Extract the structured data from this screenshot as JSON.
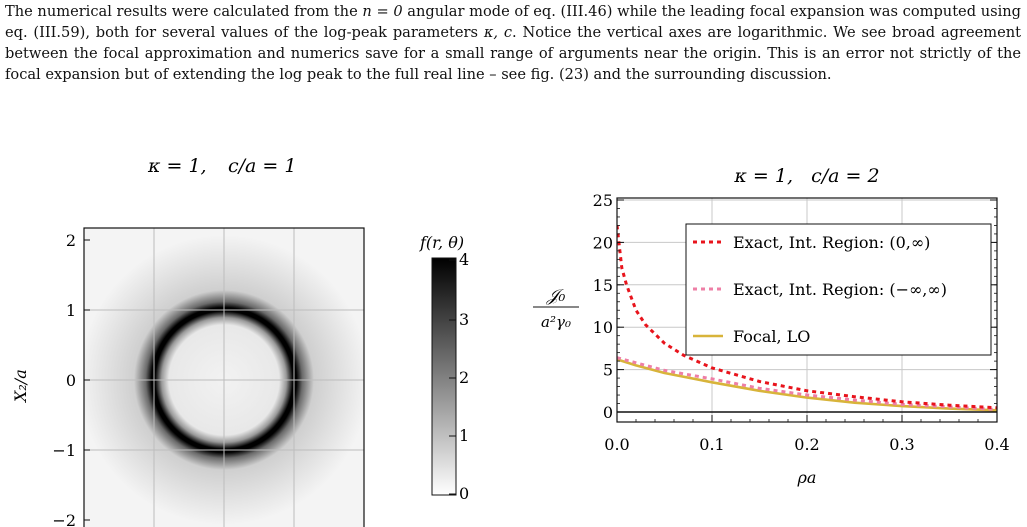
{
  "paragraph": {
    "part1": "The numerical results were calculated from the ",
    "n_eq": "n = 0",
    "part2": " angular mode of eq. (III.46) while the leading focal expansion was computed using eq. (III.59), both for several values of the log-peak parameters ",
    "params": "κ, c",
    "part3": ". Notice the vertical axes are logarithmic. We see broad agreement between the focal approximation and numerics save for a small range of arguments near the origin. This is an error not strictly of the focal expansion but of extending the log peak to the full real line – see fig. (23) and the surrounding discussion."
  },
  "left_panel": {
    "title_kappa": "κ = 1,",
    "title_c": "c/a = 1",
    "ylabel": "X₂/a",
    "yticks": [
      "2",
      "1",
      "0",
      "−1",
      "−2"
    ],
    "colorbar_title": "f(r, θ)",
    "colorbar_ticks": [
      "4",
      "3",
      "2",
      "1",
      "0"
    ]
  },
  "chart_data": {
    "type": "line",
    "title": "κ = 1,   c/a = 2",
    "xlabel": "ρa",
    "ylabel_num": "𝒥₀",
    "ylabel_den": "a²γ₀",
    "xlim": [
      0.0,
      0.4
    ],
    "ylim": [
      0,
      25
    ],
    "xticks": [
      "0.0",
      "0.1",
      "0.2",
      "0.3",
      "0.4"
    ],
    "yticks": [
      "0",
      "5",
      "10",
      "15",
      "20",
      "25"
    ],
    "grid": true,
    "legend_position": "top-right",
    "series": [
      {
        "name": "Exact, Int. Region: (0,∞)",
        "style": "dotted",
        "color": "#e8141c",
        "x": [
          0.0,
          0.005,
          0.01,
          0.02,
          0.03,
          0.05,
          0.07,
          0.1,
          0.15,
          0.2,
          0.25,
          0.3,
          0.35,
          0.4
        ],
        "y": [
          22.0,
          17.0,
          15.0,
          12.0,
          10.3,
          8.1,
          6.7,
          5.2,
          3.6,
          2.5,
          1.8,
          1.2,
          0.8,
          0.5
        ]
      },
      {
        "name": "Exact, Int. Region: (−∞,∞)",
        "style": "dotted",
        "color": "#ee7fa6",
        "x": [
          0.0,
          0.02,
          0.05,
          0.1,
          0.15,
          0.2,
          0.25,
          0.3,
          0.35,
          0.4
        ],
        "y": [
          6.4,
          5.8,
          4.9,
          3.9,
          2.8,
          2.0,
          1.4,
          0.9,
          0.6,
          0.3
        ]
      },
      {
        "name": "Focal, LO",
        "style": "solid",
        "color": "#d8b43a",
        "x": [
          0.0,
          0.02,
          0.05,
          0.1,
          0.15,
          0.2,
          0.25,
          0.3,
          0.35,
          0.4
        ],
        "y": [
          6.2,
          5.5,
          4.6,
          3.5,
          2.5,
          1.7,
          1.1,
          0.7,
          0.4,
          0.2
        ]
      }
    ]
  },
  "colors": {
    "text": "#111111",
    "grid": "#c8c8c8",
    "baseline": "#111111"
  }
}
